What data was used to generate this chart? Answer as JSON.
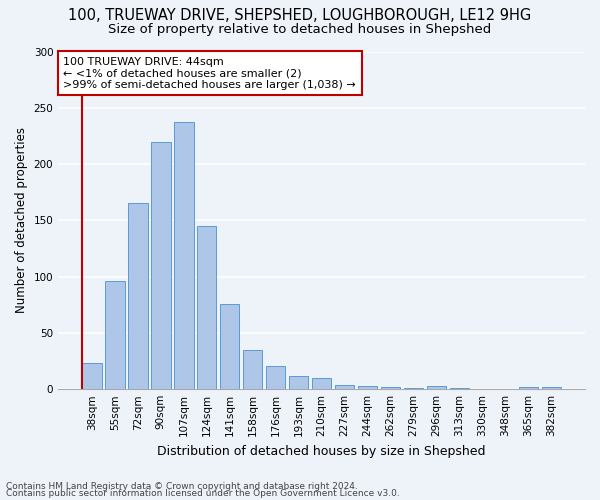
{
  "title": "100, TRUEWAY DRIVE, SHEPSHED, LOUGHBOROUGH, LE12 9HG",
  "subtitle": "Size of property relative to detached houses in Shepshed",
  "xlabel": "Distribution of detached houses by size in Shepshed",
  "ylabel": "Number of detached properties",
  "bar_color": "#aec6e8",
  "bar_edge_color": "#5b9bd5",
  "vline_color": "#c00000",
  "categories": [
    "38sqm",
    "55sqm",
    "72sqm",
    "90sqm",
    "107sqm",
    "124sqm",
    "141sqm",
    "158sqm",
    "176sqm",
    "193sqm",
    "210sqm",
    "227sqm",
    "244sqm",
    "262sqm",
    "279sqm",
    "296sqm",
    "313sqm",
    "330sqm",
    "348sqm",
    "365sqm",
    "382sqm"
  ],
  "values": [
    23,
    96,
    165,
    220,
    237,
    145,
    76,
    35,
    21,
    12,
    10,
    4,
    3,
    2,
    1,
    3,
    1,
    0,
    0,
    2,
    2
  ],
  "vline_x": 0,
  "annotation_title": "100 TRUEWAY DRIVE: 44sqm",
  "annotation_line1": "← <1% of detached houses are smaller (2)",
  "annotation_line2": ">99% of semi-detached houses are larger (1,038) →",
  "annotation_box_color": "#ffffff",
  "annotation_box_edge_color": "#c00000",
  "ylim": [
    0,
    300
  ],
  "yticks": [
    0,
    50,
    100,
    150,
    200,
    250,
    300
  ],
  "footer_line1": "Contains HM Land Registry data © Crown copyright and database right 2024.",
  "footer_line2": "Contains public sector information licensed under the Open Government Licence v3.0.",
  "background_color": "#eef2f9",
  "grid_color": "#ffffff",
  "title_fontsize": 10.5,
  "subtitle_fontsize": 9.5,
  "axis_label_fontsize": 8.5,
  "tick_fontsize": 7.5,
  "annotation_fontsize": 8,
  "footer_fontsize": 6.5
}
